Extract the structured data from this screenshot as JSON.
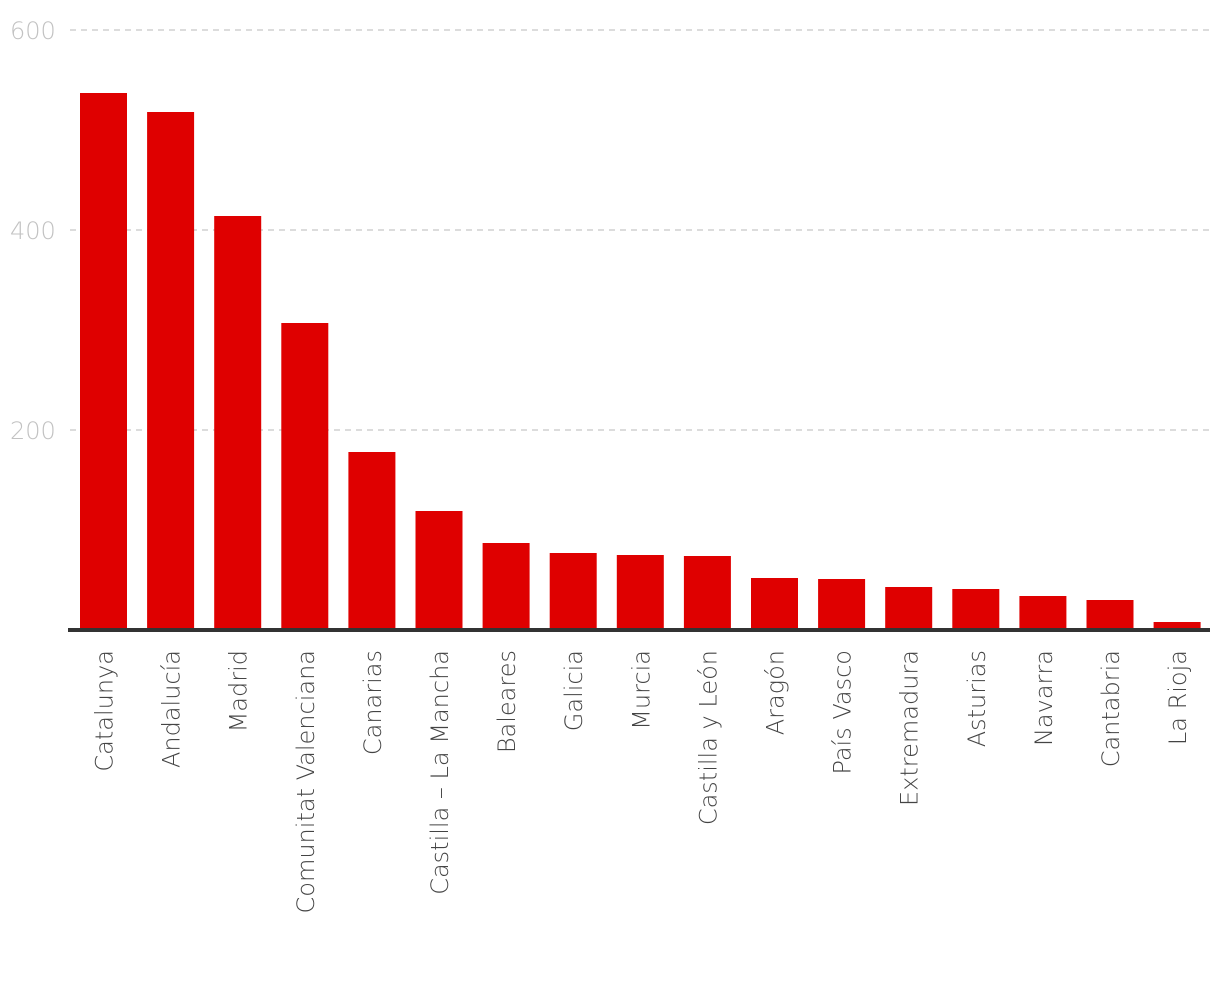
{
  "chart_data": {
    "type": "bar",
    "title": "",
    "xlabel": "",
    "ylabel": "",
    "categories": [
      "Catalunya",
      "Andalucía",
      "Madrid",
      "Comunitat Valenciana",
      "Canarias",
      "Castilla – La Mancha",
      "Baleares",
      "Galicia",
      "Murcia",
      "Castilla y León",
      "Aragón",
      "País Vasco",
      "Extremadura",
      "Asturias",
      "Navarra",
      "Cantabria",
      "La Rioja"
    ],
    "values": [
      537,
      518,
      414,
      307,
      178,
      119,
      87,
      77,
      75,
      74,
      52,
      51,
      43,
      41,
      34,
      30,
      8
    ],
    "ylim": [
      0,
      600
    ],
    "yticks": [
      200,
      400,
      600
    ],
    "grid": true,
    "legend": "none",
    "bar_color": "#df0000",
    "baseline_color": "#333333",
    "gridline_color": "#d0d0d0"
  }
}
